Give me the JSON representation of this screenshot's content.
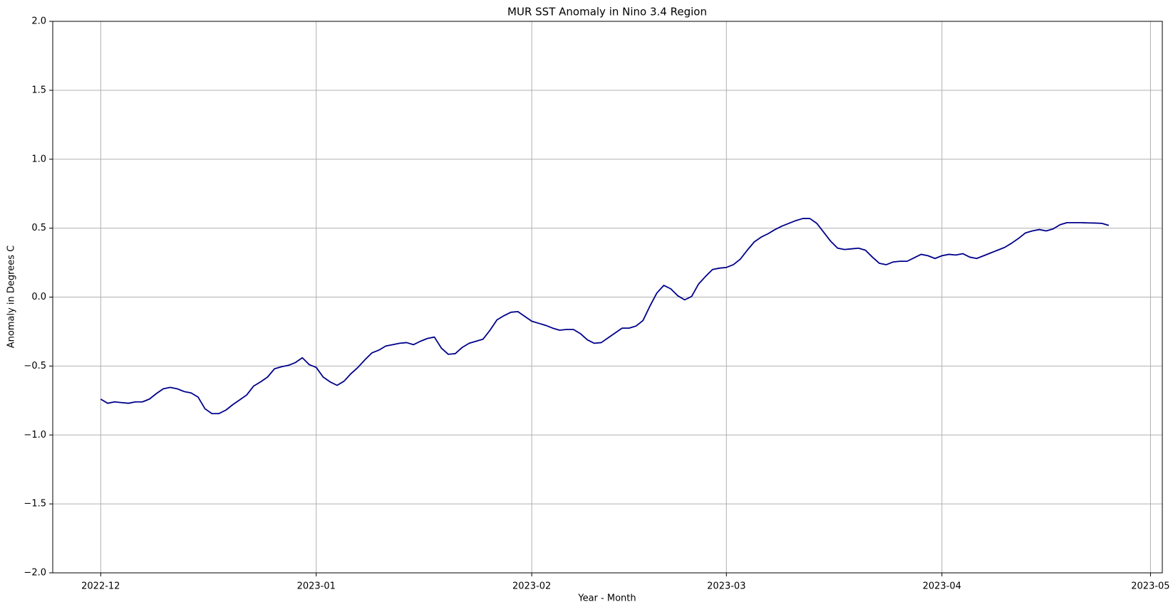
{
  "chart_data": {
    "type": "line",
    "title": "MUR SST Anomaly in Nino 3.4 Region",
    "x_label": "Year - Month",
    "y_label": "Anomaly in Degrees C",
    "color": "#00008b",
    "grid": true,
    "xlim": [
      19320.1,
      19479.7
    ],
    "xticks": [
      {
        "value": 19327,
        "label": "2022-12"
      },
      {
        "value": 19358,
        "label": "2023-01"
      },
      {
        "value": 19389,
        "label": "2023-02"
      },
      {
        "value": 19417,
        "label": "2023-03"
      },
      {
        "value": 19448,
        "label": "2023-04"
      },
      {
        "value": 19478,
        "label": "2023-05"
      }
    ],
    "ylim": [
      -2,
      2
    ],
    "yticks": [
      {
        "value": -2,
        "label": "−2.0"
      },
      {
        "value": -1.5,
        "label": "−1.5"
      },
      {
        "value": -1,
        "label": "−1.0"
      },
      {
        "value": -0.5,
        "label": "−0.5"
      },
      {
        "value": 0,
        "label": "0.0"
      },
      0.5,
      {
        "value": 1,
        "label": "1.0"
      },
      1.5,
      {
        "value": 2,
        "label": "2.0"
      }
    ],
    "x": [
      19327,
      19328,
      19329,
      19330,
      19331,
      19332,
      19333,
      19334,
      19335,
      19336,
      19337,
      19338,
      19339,
      19340,
      19341,
      19342,
      19343,
      19344,
      19345,
      19346,
      19347,
      19348,
      19349,
      19350,
      19351,
      19352,
      19353,
      19354,
      19355,
      19356,
      19357,
      19358,
      19359,
      19360,
      19361,
      19362,
      19363,
      19364,
      19365,
      19366,
      19367,
      19368,
      19369,
      19370,
      19371,
      19372,
      19373,
      19374,
      19375,
      19376,
      19377,
      19378,
      19379,
      19380,
      19381,
      19382,
      19383,
      19384,
      19385,
      19386,
      19387,
      19388,
      19389,
      19390,
      19391,
      19392,
      19393,
      19394,
      19395,
      19396,
      19397,
      19398,
      19399,
      19400,
      19401,
      19402,
      19403,
      19404,
      19405,
      19406,
      19407,
      19408,
      19409,
      19410,
      19411,
      19412,
      19413,
      19414,
      19415,
      19416,
      19417,
      19418,
      19419,
      19420,
      19421,
      19422,
      19423,
      19424,
      19425,
      19426,
      19427,
      19428,
      19429,
      19430,
      19431,
      19432,
      19433,
      19434,
      19435,
      19436,
      19437,
      19438,
      19439,
      19440,
      19441,
      19442,
      19443,
      19444,
      19445,
      19446,
      19447,
      19448,
      19449,
      19450,
      19451,
      19452,
      19453,
      19454,
      19455,
      19456,
      19457,
      19458,
      19459,
      19460,
      19461,
      19462,
      19463,
      19464,
      19465,
      19466,
      19467,
      19468,
      19469,
      19470,
      19471,
      19472
    ],
    "values": [
      -0.74,
      -0.77,
      -0.76,
      -0.765,
      -0.77,
      -0.76,
      -0.76,
      -0.74,
      -0.7,
      -0.665,
      -0.655,
      -0.665,
      -0.685,
      -0.695,
      -0.725,
      -0.81,
      -0.845,
      -0.845,
      -0.82,
      -0.78,
      -0.745,
      -0.71,
      -0.645,
      -0.615,
      -0.58,
      -0.52,
      -0.505,
      -0.495,
      -0.475,
      -0.44,
      -0.49,
      -0.51,
      -0.58,
      -0.615,
      -0.64,
      -0.61,
      -0.555,
      -0.51,
      -0.455,
      -0.405,
      -0.385,
      -0.355,
      -0.345,
      -0.335,
      -0.33,
      -0.345,
      -0.32,
      -0.3,
      -0.29,
      -0.37,
      -0.415,
      -0.41,
      -0.365,
      -0.335,
      -0.32,
      -0.305,
      -0.24,
      -0.165,
      -0.135,
      -0.11,
      -0.105,
      -0.14,
      -0.175,
      -0.19,
      -0.205,
      -0.225,
      -0.24,
      -0.235,
      -0.235,
      -0.265,
      -0.31,
      -0.335,
      -0.33,
      -0.295,
      -0.26,
      -0.225,
      -0.225,
      -0.21,
      -0.17,
      -0.065,
      0.03,
      0.085,
      0.06,
      0.01,
      -0.02,
      0.005,
      0.095,
      0.15,
      0.2,
      0.21,
      0.215,
      0.235,
      0.275,
      0.34,
      0.4,
      0.435,
      0.46,
      0.49,
      0.515,
      0.535,
      0.555,
      0.57,
      0.57,
      0.535,
      0.47,
      0.405,
      0.355,
      0.345,
      0.35,
      0.355,
      0.34,
      0.29,
      0.245,
      0.235,
      0.255,
      0.26,
      0.26,
      0.285,
      0.31,
      0.3,
      0.28,
      0.3,
      0.31,
      0.305,
      0.315,
      0.29,
      0.28,
      0.3,
      0.32,
      0.34,
      0.36,
      0.39,
      0.425,
      0.465,
      0.48,
      0.49,
      0.48,
      0.495,
      0.525,
      0.54,
      0.54,
      0.54,
      0.538,
      0.537,
      0.535,
      0.52
    ]
  }
}
